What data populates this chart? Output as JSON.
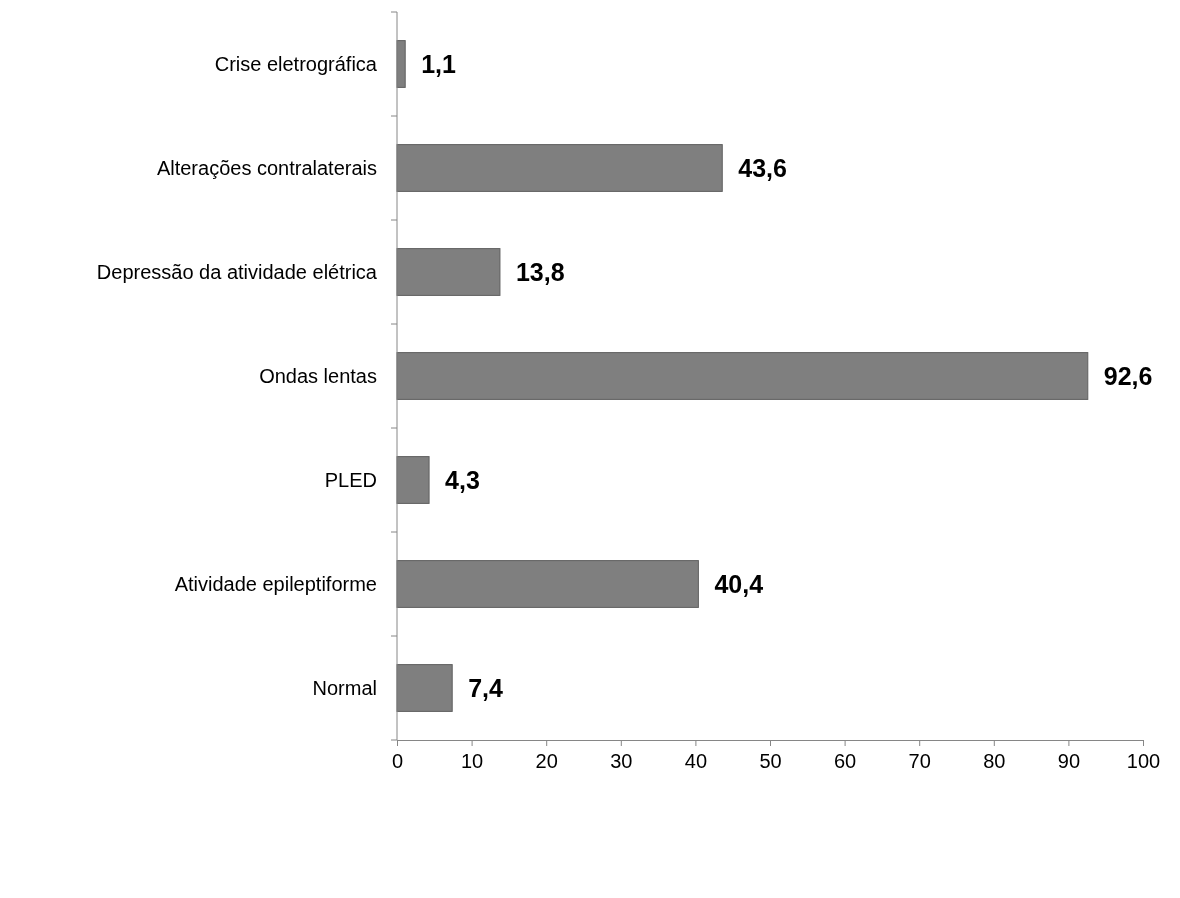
{
  "chart_data": {
    "type": "bar",
    "orientation": "horizontal",
    "categories": [
      "Crise eletrográfica",
      "Alterações contralaterais",
      "Depressão da atividade elétrica",
      "Ondas lentas",
      "PLED",
      "Atividade epileptiforme",
      "Normal"
    ],
    "values": [
      1.1,
      43.6,
      13.8,
      92.6,
      4.3,
      40.4,
      7.4
    ],
    "value_labels": [
      "1,1",
      "43,6",
      "13,8",
      "92,6",
      "4,3",
      "40,4",
      "7,4"
    ],
    "color": "#7f7f7f",
    "xlim": [
      0,
      100
    ],
    "xticks": [
      0,
      10,
      20,
      30,
      40,
      50,
      60,
      70,
      80,
      90,
      100
    ],
    "grid": false
  }
}
